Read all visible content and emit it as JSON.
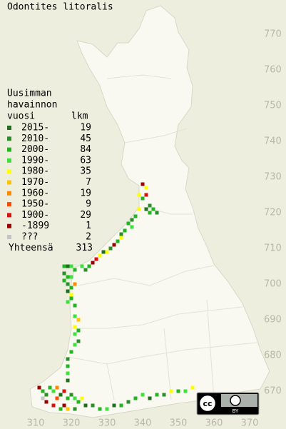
{
  "title": "Odontites litoralis",
  "legend": {
    "title_lines": [
      "Uusimman",
      "havainnon",
      "vuosi"
    ],
    "count_header": "lkm",
    "rows": [
      {
        "label": "2015-",
        "count": 19,
        "color": "#1f6f1f"
      },
      {
        "label": "2010-",
        "count": 45,
        "color": "#2a8f2a"
      },
      {
        "label": "2000-",
        "count": 84,
        "color": "#22b522"
      },
      {
        "label": "1990-",
        "count": 63,
        "color": "#3ee03e"
      },
      {
        "label": "1980-",
        "count": 35,
        "color": "#ffff00"
      },
      {
        "label": "1970-",
        "count": 7,
        "color": "#ffc400"
      },
      {
        "label": "1960-",
        "count": 19,
        "color": "#ff8a00"
      },
      {
        "label": "1950-",
        "count": 9,
        "color": "#ff4a00"
      },
      {
        "label": "1900-",
        "count": 29,
        "color": "#dd1010"
      },
      {
        "label": "-1899",
        "count": 1,
        "color": "#9a0000"
      },
      {
        "label": "???",
        "count": 2,
        "color": "#c4c4c4"
      }
    ],
    "total_label": "Yhteensä",
    "total": 313
  },
  "map": {
    "xticks": [
      310,
      320,
      330,
      340,
      350,
      360,
      370
    ],
    "yticks": [
      770,
      760,
      750,
      740,
      730,
      720,
      710,
      700,
      690,
      680,
      670
    ],
    "squares": [
      [
        340,
        728,
        9
      ],
      [
        341,
        727,
        4
      ],
      [
        339,
        725,
        4
      ],
      [
        341,
        725,
        8
      ],
      [
        340,
        724,
        2
      ],
      [
        342,
        722,
        1
      ],
      [
        341,
        721,
        0
      ],
      [
        343,
        721,
        2
      ],
      [
        342,
        720,
        2
      ],
      [
        344,
        720,
        1
      ],
      [
        339,
        721,
        4
      ],
      [
        338,
        719,
        2
      ],
      [
        337,
        718,
        1
      ],
      [
        336,
        717,
        2
      ],
      [
        337,
        716,
        3
      ],
      [
        335,
        715,
        2
      ],
      [
        334,
        714,
        1
      ],
      [
        334,
        713,
        4
      ],
      [
        333,
        712,
        2
      ],
      [
        332,
        711,
        9
      ],
      [
        331,
        710,
        1
      ],
      [
        330,
        709,
        4
      ],
      [
        329,
        709,
        0
      ],
      [
        328,
        708,
        4
      ],
      [
        327,
        707,
        8
      ],
      [
        326,
        706,
        9
      ],
      [
        325,
        705,
        2
      ],
      [
        324,
        704,
        1
      ],
      [
        323,
        705,
        3
      ],
      [
        318,
        705,
        2
      ],
      [
        319,
        705,
        0
      ],
      [
        320,
        705,
        3
      ],
      [
        321,
        704,
        2
      ],
      [
        318,
        703,
        1
      ],
      [
        319,
        702,
        2
      ],
      [
        320,
        702,
        3
      ],
      [
        318,
        701,
        2
      ],
      [
        319,
        700,
        1
      ],
      [
        320,
        699,
        2
      ],
      [
        321,
        700,
        6
      ],
      [
        319,
        698,
        0
      ],
      [
        320,
        697,
        4
      ],
      [
        320,
        696,
        2
      ],
      [
        319,
        695,
        3
      ],
      [
        321,
        694,
        2
      ],
      [
        321,
        691,
        3
      ],
      [
        322,
        690,
        5
      ],
      [
        321,
        688,
        4
      ],
      [
        322,
        687,
        2
      ],
      [
        321,
        686,
        3
      ],
      [
        322,
        684,
        1
      ],
      [
        321,
        683,
        3
      ],
      [
        320,
        681,
        2
      ],
      [
        319,
        679,
        1
      ],
      [
        319,
        677,
        2
      ],
      [
        319,
        675,
        3
      ],
      [
        319,
        673,
        0
      ],
      [
        311,
        671,
        9
      ],
      [
        312,
        670,
        2
      ],
      [
        313,
        669,
        1
      ],
      [
        314,
        671,
        2
      ],
      [
        315,
        670,
        3
      ],
      [
        316,
        671,
        6
      ],
      [
        317,
        669,
        0
      ],
      [
        318,
        670,
        8
      ],
      [
        319,
        668,
        2
      ],
      [
        320,
        669,
        1
      ],
      [
        321,
        668,
        3
      ],
      [
        322,
        667,
        2
      ],
      [
        323,
        668,
        4
      ],
      [
        324,
        666,
        0
      ],
      [
        326,
        666,
        1
      ],
      [
        328,
        665,
        2
      ],
      [
        330,
        665,
        3
      ],
      [
        332,
        666,
        0
      ],
      [
        334,
        666,
        2
      ],
      [
        336,
        667,
        1
      ],
      [
        338,
        668,
        2
      ],
      [
        340,
        669,
        3
      ],
      [
        342,
        668,
        0
      ],
      [
        344,
        669,
        2
      ],
      [
        346,
        669,
        1
      ],
      [
        348,
        670,
        4
      ],
      [
        350,
        670,
        2
      ],
      [
        352,
        670,
        3
      ],
      [
        354,
        671,
        4
      ],
      [
        313,
        667,
        9
      ],
      [
        315,
        666,
        8
      ],
      [
        317,
        665,
        2
      ],
      [
        319,
        665,
        5
      ],
      [
        321,
        665,
        1
      ],
      [
        312,
        668,
        10
      ],
      [
        318,
        666,
        9
      ],
      [
        316,
        668,
        7
      ]
    ]
  },
  "license": {
    "cc": "cc",
    "by": "BY"
  }
}
